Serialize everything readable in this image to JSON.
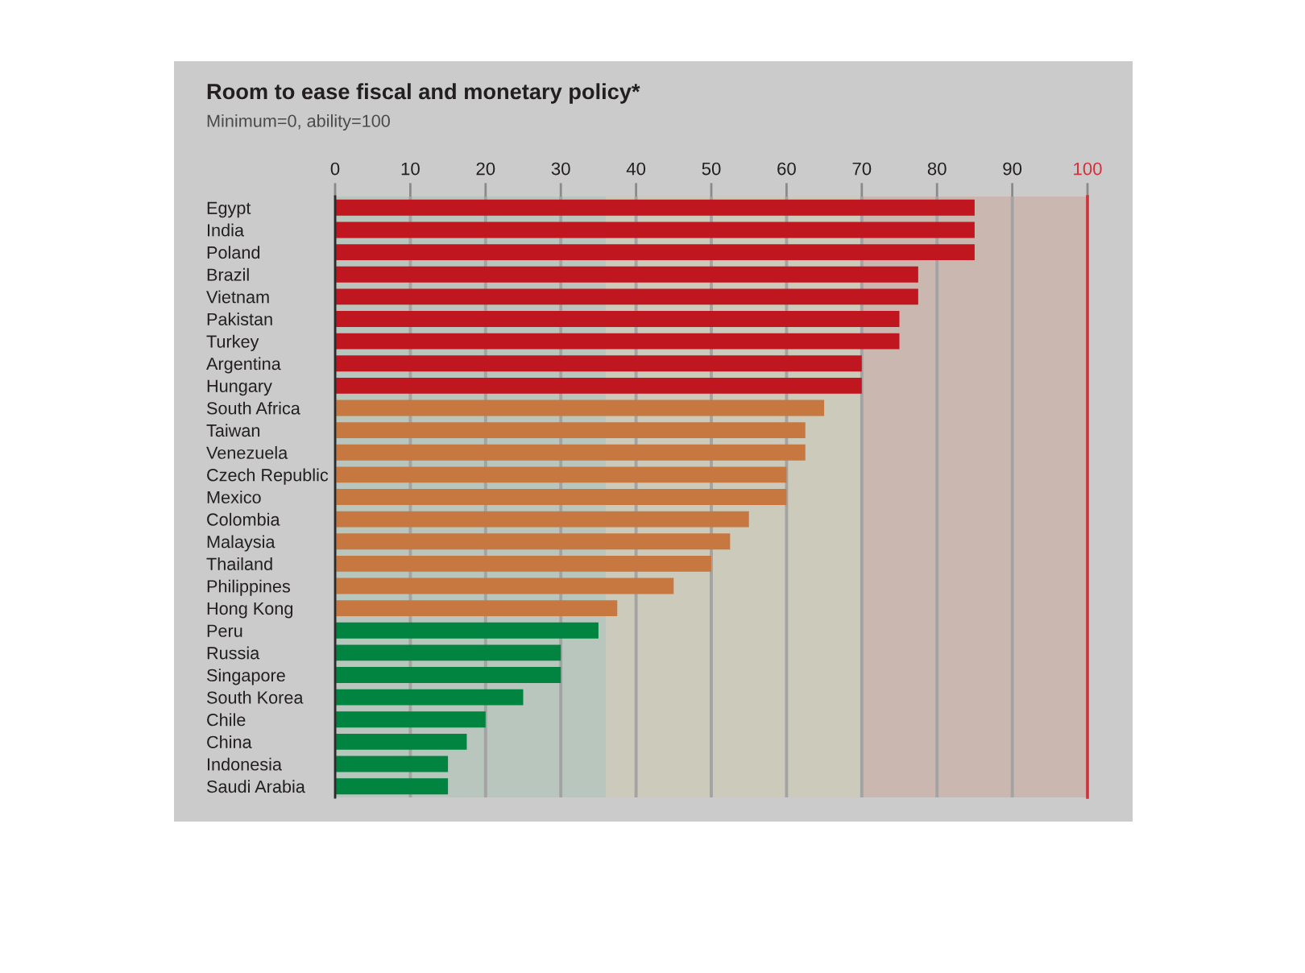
{
  "chart_data": {
    "type": "bar",
    "orientation": "horizontal",
    "title": "Room to ease fiscal and monetary policy*",
    "subtitle": "Minimum=0, ability=100",
    "categories": [
      "Egypt",
      "India",
      "Poland",
      "Brazil",
      "Vietnam",
      "Pakistan",
      "Turkey",
      "Argentina",
      "Hungary",
      "South Africa",
      "Taiwan",
      "Venezuela",
      "Czech Republic",
      "Mexico",
      "Colombia",
      "Malaysia",
      "Thailand",
      "Philippines",
      "Hong Kong",
      "Peru",
      "Russia",
      "Singapore",
      "South Korea",
      "Chile",
      "China",
      "Indonesia",
      "Saudi Arabia"
    ],
    "values": [
      85,
      85,
      85,
      77.5,
      77.5,
      75,
      75,
      70,
      70,
      65,
      62.5,
      62.5,
      60,
      60,
      55,
      52.5,
      50,
      45,
      37.5,
      35,
      30,
      30,
      25,
      20,
      17.5,
      15,
      15
    ],
    "colors": [
      "#c0161f",
      "#c0161f",
      "#c0161f",
      "#c0161f",
      "#c0161f",
      "#c0161f",
      "#c0161f",
      "#c0161f",
      "#c0161f",
      "#c77841",
      "#c77841",
      "#c77841",
      "#c77841",
      "#c77841",
      "#c77841",
      "#c77841",
      "#c77841",
      "#c77841",
      "#c77841",
      "#00843f",
      "#00843f",
      "#00843f",
      "#00843f",
      "#00843f",
      "#00843f",
      "#00843f",
      "#00843f"
    ],
    "xlim": [
      0,
      100
    ],
    "xticks": [
      0,
      10,
      20,
      30,
      40,
      50,
      60,
      70,
      80,
      90,
      100
    ],
    "grid": "x",
    "bands": [
      {
        "axis": "x",
        "from": 0,
        "to": 36,
        "color": "#b9c6be"
      },
      {
        "axis": "x",
        "from": 36,
        "to": 70,
        "color": "#cccbbb"
      },
      {
        "axis": "x",
        "from": 70,
        "to": 100,
        "color": "#cab8b0"
      }
    ],
    "ref_lines": [
      {
        "axis": "x",
        "value": 100,
        "color": "#d2323a"
      }
    ]
  }
}
